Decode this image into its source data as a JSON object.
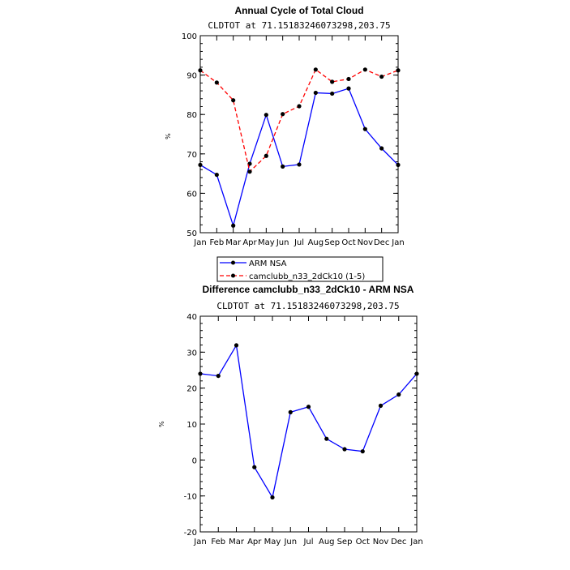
{
  "chart_data": [
    {
      "type": "line",
      "title": "Annual Cycle of Total Cloud",
      "subtitle": "CLDTOT at 71.15183246073298,203.75",
      "ylabel": "%",
      "xlabel": "",
      "categories": [
        "Jan",
        "Feb",
        "Mar",
        "Apr",
        "May",
        "Jun",
        "Jul",
        "Aug",
        "Sep",
        "Oct",
        "Nov",
        "Dec",
        "Jan"
      ],
      "ylim": [
        50,
        100
      ],
      "yticks": [
        50,
        60,
        70,
        80,
        90,
        100
      ],
      "series": [
        {
          "name": "ARM NSA",
          "color": "#0000ff",
          "dash": "solid",
          "values": [
            67.2,
            64.7,
            51.8,
            67.5,
            79.9,
            66.8,
            67.3,
            85.5,
            85.3,
            86.6,
            76.3,
            71.4,
            67.2
          ]
        },
        {
          "name": "camclubb_n33_2dCk10 (1-5)",
          "color": "#ff0000",
          "dash": "dashed",
          "values": [
            91.2,
            88.1,
            83.6,
            65.5,
            69.5,
            80.1,
            82.1,
            91.4,
            88.3,
            89.0,
            91.4,
            89.6,
            91.2
          ]
        }
      ],
      "legend_position": "bottom"
    },
    {
      "type": "line",
      "title": "Difference camclubb_n33_2dCk10 - ARM NSA",
      "subtitle": "CLDTOT at 71.15183246073298,203.75",
      "ylabel": "%",
      "xlabel": "",
      "categories": [
        "Jan",
        "Feb",
        "Mar",
        "Apr",
        "May",
        "Jun",
        "Jul",
        "Aug",
        "Sep",
        "Oct",
        "Nov",
        "Dec",
        "Jan"
      ],
      "ylim": [
        -20,
        40
      ],
      "yticks": [
        -20,
        -10,
        0,
        10,
        20,
        30,
        40
      ],
      "series": [
        {
          "color": "#0000ff",
          "dash": "solid",
          "values": [
            24.0,
            23.4,
            31.9,
            -2.0,
            -10.4,
            13.3,
            14.8,
            5.9,
            3.0,
            2.4,
            15.1,
            18.2,
            24.0
          ]
        }
      ]
    }
  ]
}
